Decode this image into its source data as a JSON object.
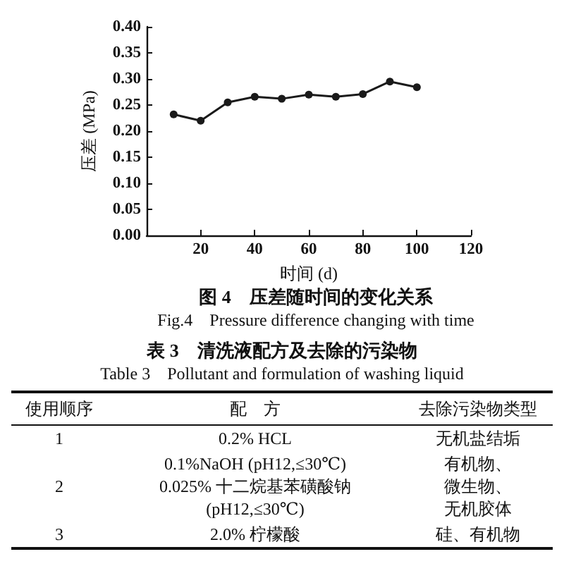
{
  "chart_data": [
    {
      "type": "line",
      "title": "图 4　压差随时间的变化关系",
      "subtitle": "Fig.4　Pressure difference changing with time",
      "xlabel": "时间 (d)",
      "ylabel": "压差 (MPa)",
      "x": [
        10,
        20,
        30,
        40,
        50,
        60,
        70,
        80,
        90,
        100
      ],
      "series": [
        {
          "color": "#1a1a1a",
          "values": [
            0.232,
            0.22,
            0.255,
            0.266,
            0.262,
            0.27,
            0.266,
            0.271,
            0.295,
            0.284
          ]
        }
      ],
      "xlim": [
        0,
        120
      ],
      "xticks": [
        20,
        40,
        60,
        80,
        100,
        120
      ],
      "ylim": [
        0,
        0.4
      ],
      "yticks": [
        {
          "value": 0,
          "label": "0.00"
        },
        0.05,
        {
          "value": 0.1,
          "label": "0.10"
        },
        0.15,
        {
          "value": 0.2,
          "label": "0.20"
        },
        0.25,
        {
          "value": 0.3,
          "label": "0.30"
        },
        0.35,
        {
          "value": 0.4,
          "label": "0.40"
        }
      ],
      "grid": false,
      "marker": "circle",
      "line_style": "solid"
    },
    {
      "type": "other",
      "title": "表 3　清洗液配方及去除的污染物",
      "subtitle": "Table 3　Pollutant and formulation of washing liquid",
      "annotations": [
        "使用顺序",
        "配　方",
        "去除污染物类型",
        "1",
        "0.2% HCL",
        "无机盐结垢",
        "2",
        "0.1%NaOH (pH12,≤30℃)\n0.025% 十二烷基苯磺酸钠(pH12,≤30℃)",
        "有机物、微生物、无机胶体",
        "3",
        "2.0% 柠檬酸",
        "硅、有机物"
      ]
    }
  ]
}
